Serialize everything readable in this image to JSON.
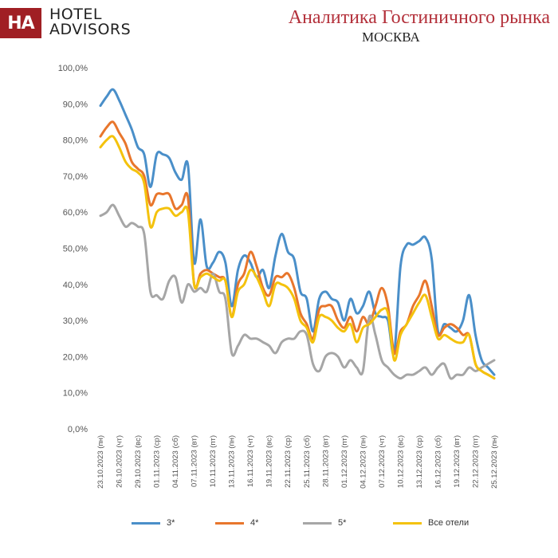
{
  "header": {
    "logo_text": "HA",
    "brand_line1": "HOTEL",
    "brand_line2": "ADVISORS",
    "title": "Аналитика Гостиничного рынка",
    "subtitle": "МОСКВА"
  },
  "colors": {
    "s3": "#4a8fc9",
    "s4": "#e8762c",
    "s5": "#a6a6a6",
    "all": "#f4c20d"
  },
  "chart_data": {
    "type": "line",
    "title": "Аналитика Гостиничного рынка",
    "subtitle": "МОСКВА",
    "xlabel": "",
    "ylabel": "",
    "ylim": [
      0,
      100
    ],
    "yticks": [
      "0,0%",
      "10,0%",
      "20,0%",
      "30,0%",
      "40,0%",
      "50,0%",
      "60,0%",
      "70,0%",
      "80,0%",
      "90,0%",
      "100,0%"
    ],
    "grid": false,
    "legend_position": "bottom",
    "x_start": "23.10.2023",
    "x_end": "28.12.2023",
    "x_ticks": [
      "23.10.2023 (пн)",
      "26.10.2023 (чт)",
      "29.10.2023 (вс)",
      "01.11.2023 (ср)",
      "04.11.2023 (сб)",
      "07.11.2023 (вт)",
      "10.11.2023 (пт)",
      "13.11.2023 (пн)",
      "16.11.2023 (чт)",
      "19.11.2023 (вс)",
      "22.11.2023 (ср)",
      "25.11.2023 (сб)",
      "28.11.2023 (вт)",
      "01.12.2023 (пт)",
      "04.12.2023 (пн)",
      "07.12.2023 (чт)",
      "10.12.2023 (вс)",
      "13.12.2023 (ср)",
      "16.12.2023 (сб)",
      "19.12.2023 (вт)",
      "22.12.2023 (пт)",
      "25.12.2023 (пн)"
    ],
    "series": [
      {
        "name": "3*",
        "values": [
          89.5,
          92,
          94,
          91,
          87,
          83,
          78,
          76,
          67,
          76,
          76,
          75,
          71,
          69,
          73,
          46,
          58,
          45,
          46,
          49,
          46,
          34,
          44,
          48,
          46,
          42,
          44,
          39,
          48,
          54,
          49,
          47,
          38,
          36,
          27,
          36,
          38,
          36,
          35,
          30,
          36,
          32,
          34,
          38,
          32,
          31,
          30,
          21,
          45,
          51,
          51,
          52,
          53,
          47,
          27,
          29,
          28,
          27,
          30,
          37,
          26,
          19,
          17,
          15
        ]
      },
      {
        "name": "4*",
        "values": [
          81,
          83.5,
          85,
          82,
          79,
          74,
          72,
          70,
          62,
          65,
          65,
          65,
          61,
          62,
          64,
          40,
          43,
          44,
          43,
          42,
          41,
          31,
          40,
          43,
          49,
          45,
          39,
          37,
          42,
          42,
          43,
          39,
          32,
          29,
          25,
          33,
          34,
          34,
          30,
          28,
          31,
          27,
          31,
          29,
          34,
          39,
          34,
          21,
          27,
          29,
          34,
          37,
          41,
          34,
          26,
          28,
          29,
          28,
          26,
          26,
          18,
          16,
          15,
          14
        ]
      },
      {
        "name": "5*",
        "values": [
          59,
          60,
          62,
          59,
          56,
          57,
          56,
          54,
          38,
          37,
          36,
          41,
          42,
          35,
          40,
          38,
          39,
          38,
          43,
          38,
          36,
          21,
          23,
          26,
          25,
          25,
          24,
          23,
          21,
          24,
          25,
          25,
          27,
          26,
          18,
          16,
          20,
          21,
          20,
          17,
          19,
          17,
          16,
          31,
          26,
          19,
          17,
          15,
          14,
          15,
          15,
          16,
          17,
          15,
          17,
          18,
          14,
          15,
          15,
          17,
          16,
          17,
          18,
          19
        ]
      },
      {
        "name": "Все отели",
        "values": [
          78,
          80,
          81,
          78,
          74,
          72,
          71,
          68,
          56,
          60,
          61,
          61,
          59,
          60,
          60,
          40,
          42,
          43,
          42,
          41,
          41,
          31,
          38,
          40,
          44,
          42,
          38,
          34,
          40,
          40,
          39,
          36,
          30,
          28,
          24,
          31,
          31,
          30,
          28,
          27,
          29,
          24,
          28,
          29,
          31,
          33,
          32,
          19,
          26,
          29,
          32,
          35,
          37,
          31,
          25,
          26,
          25,
          24,
          24,
          26,
          18,
          16,
          15,
          14
        ]
      }
    ]
  }
}
